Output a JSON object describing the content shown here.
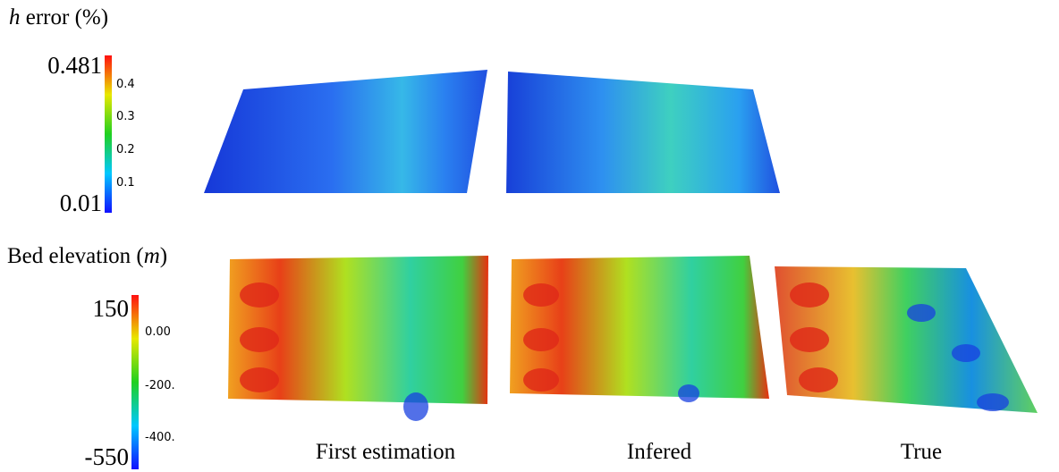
{
  "h_error": {
    "title_var": "h",
    "title_rest": "error (%)",
    "colorbar": {
      "max": "0.481",
      "min": "0.01",
      "ticks": [
        "0.4",
        "0.3",
        "0.2",
        "0.1"
      ]
    }
  },
  "bed_elevation": {
    "title_start": "Bed elevation (",
    "title_var": "m",
    "title_end": ")",
    "colorbar": {
      "max": "150",
      "min": "-550",
      "ticks": [
        "0.00",
        "-200.",
        "-400."
      ]
    }
  },
  "captions": [
    "First estimation",
    "Infered",
    "True"
  ]
}
